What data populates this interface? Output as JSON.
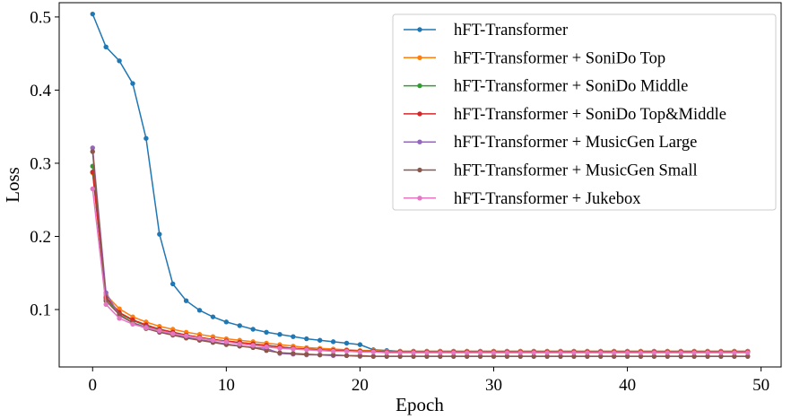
{
  "chart_data": {
    "type": "line",
    "xlabel": "Epoch",
    "ylabel": "Loss",
    "xlim": [
      -2.5,
      51.5
    ],
    "ylim": [
      0.0215,
      0.5195
    ],
    "xticks": [
      0,
      10,
      20,
      30,
      40,
      50
    ],
    "xtick_labels": [
      "0",
      "10",
      "20",
      "30",
      "40",
      "50"
    ],
    "yticks": [
      0.1,
      0.2,
      0.3,
      0.4,
      0.5
    ],
    "ytick_labels": [
      "0.1",
      "0.2",
      "0.3",
      "0.4",
      "0.5"
    ],
    "grid": false,
    "legend_position": "top-right",
    "x": [
      0,
      1,
      2,
      3,
      4,
      5,
      6,
      7,
      8,
      9,
      10,
      11,
      12,
      13,
      14,
      15,
      16,
      17,
      18,
      19,
      20,
      21,
      22,
      23,
      24,
      25,
      26,
      27,
      28,
      29,
      30,
      31,
      32,
      33,
      34,
      35,
      36,
      37,
      38,
      39,
      40,
      41,
      42,
      43,
      44,
      45,
      46,
      47,
      48,
      49
    ],
    "series": [
      {
        "name": "hFT-Transformer",
        "color": "#1f77b4",
        "values": [
          0.504,
          0.459,
          0.44,
          0.409,
          0.334,
          0.203,
          0.135,
          0.112,
          0.099,
          0.09,
          0.083,
          0.078,
          0.073,
          0.069,
          0.066,
          0.063,
          0.06,
          0.058,
          0.056,
          0.054,
          0.052,
          0.045,
          0.044,
          0.043,
          0.043,
          0.043,
          0.043,
          0.043,
          0.043,
          0.043,
          0.043,
          0.043,
          0.043,
          0.043,
          0.043,
          0.043,
          0.043,
          0.043,
          0.043,
          0.043,
          0.043,
          0.043,
          0.043,
          0.043,
          0.043,
          0.043,
          0.043,
          0.043,
          0.043,
          0.043
        ]
      },
      {
        "name": "hFT-Transformer + SoniDo Top",
        "color": "#ff7f0e",
        "values": [
          0.287,
          0.12,
          0.101,
          0.09,
          0.083,
          0.077,
          0.073,
          0.069,
          0.066,
          0.063,
          0.06,
          0.058,
          0.056,
          0.054,
          0.052,
          0.05,
          0.048,
          0.047,
          0.046,
          0.045,
          0.044,
          0.044,
          0.043,
          0.043,
          0.043,
          0.043,
          0.043,
          0.043,
          0.043,
          0.043,
          0.043,
          0.043,
          0.043,
          0.043,
          0.043,
          0.043,
          0.043,
          0.043,
          0.043,
          0.043,
          0.043,
          0.043,
          0.043,
          0.043,
          0.043,
          0.043,
          0.043,
          0.043,
          0.043,
          0.043
        ]
      },
      {
        "name": "hFT-Transformer + SoniDo Middle",
        "color": "#2ca02c",
        "values": [
          0.296,
          0.115,
          0.095,
          0.085,
          0.078,
          0.073,
          0.069,
          0.065,
          0.062,
          0.059,
          0.057,
          0.055,
          0.053,
          0.051,
          0.049,
          0.047,
          0.046,
          0.045,
          0.044,
          0.044,
          0.043,
          0.043,
          0.042,
          0.042,
          0.042,
          0.042,
          0.042,
          0.042,
          0.042,
          0.042,
          0.042,
          0.042,
          0.042,
          0.042,
          0.042,
          0.042,
          0.042,
          0.042,
          0.042,
          0.042,
          0.042,
          0.042,
          0.042,
          0.042,
          0.042,
          0.042,
          0.042,
          0.042,
          0.042,
          0.042
        ]
      },
      {
        "name": "hFT-Transformer + SoniDo Top&Middle",
        "color": "#d62728",
        "values": [
          0.288,
          0.117,
          0.096,
          0.086,
          0.079,
          0.073,
          0.069,
          0.065,
          0.062,
          0.059,
          0.057,
          0.055,
          0.053,
          0.051,
          0.049,
          0.047,
          0.046,
          0.045,
          0.044,
          0.044,
          0.043,
          0.043,
          0.042,
          0.042,
          0.042,
          0.042,
          0.042,
          0.042,
          0.042,
          0.042,
          0.042,
          0.042,
          0.042,
          0.042,
          0.042,
          0.042,
          0.042,
          0.042,
          0.042,
          0.042,
          0.042,
          0.042,
          0.042,
          0.042,
          0.042,
          0.042,
          0.042,
          0.042,
          0.042,
          0.042
        ]
      },
      {
        "name": "hFT-Transformer + MusicGen Large",
        "color": "#9467bd",
        "values": [
          0.321,
          0.123,
          0.092,
          0.082,
          0.076,
          0.071,
          0.066,
          0.062,
          0.059,
          0.056,
          0.053,
          0.05,
          0.048,
          0.047,
          0.04,
          0.039,
          0.038,
          0.038,
          0.037,
          0.037,
          0.036,
          0.036,
          0.036,
          0.036,
          0.036,
          0.036,
          0.036,
          0.036,
          0.036,
          0.036,
          0.036,
          0.036,
          0.036,
          0.036,
          0.036,
          0.036,
          0.036,
          0.036,
          0.036,
          0.036,
          0.036,
          0.036,
          0.036,
          0.036,
          0.036,
          0.036,
          0.036,
          0.036,
          0.036,
          0.036
        ]
      },
      {
        "name": "hFT-Transformer + MusicGen Small",
        "color": "#8c564b",
        "values": [
          0.316,
          0.112,
          0.093,
          0.082,
          0.074,
          0.069,
          0.065,
          0.061,
          0.058,
          0.055,
          0.052,
          0.05,
          0.048,
          0.044,
          0.041,
          0.04,
          0.039,
          0.038,
          0.038,
          0.037,
          0.037,
          0.036,
          0.036,
          0.036,
          0.036,
          0.036,
          0.036,
          0.036,
          0.036,
          0.036,
          0.036,
          0.036,
          0.036,
          0.036,
          0.036,
          0.036,
          0.036,
          0.036,
          0.036,
          0.036,
          0.036,
          0.036,
          0.036,
          0.036,
          0.036,
          0.036,
          0.036,
          0.036,
          0.036,
          0.036
        ]
      },
      {
        "name": "hFT-Transformer + Jukebox",
        "color": "#e377c2",
        "values": [
          0.265,
          0.107,
          0.088,
          0.08,
          0.075,
          0.071,
          0.067,
          0.064,
          0.061,
          0.058,
          0.056,
          0.053,
          0.051,
          0.049,
          0.047,
          0.046,
          0.045,
          0.044,
          0.043,
          0.043,
          0.042,
          0.042,
          0.041,
          0.041,
          0.041,
          0.041,
          0.041,
          0.041,
          0.041,
          0.041,
          0.041,
          0.041,
          0.041,
          0.041,
          0.041,
          0.041,
          0.041,
          0.041,
          0.041,
          0.041,
          0.041,
          0.041,
          0.041,
          0.041,
          0.041,
          0.041,
          0.041,
          0.041,
          0.041,
          0.041
        ]
      }
    ]
  }
}
